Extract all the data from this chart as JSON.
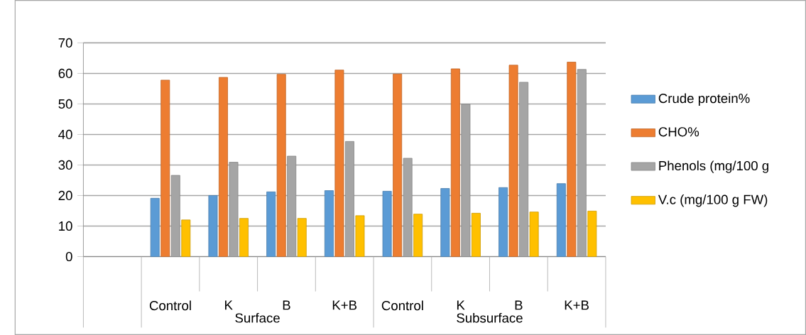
{
  "chart_data": {
    "type": "bar",
    "categories": [
      null,
      "Control",
      "K",
      "B",
      "K+B",
      "Control",
      "K",
      "B",
      "K+B"
    ],
    "series": [
      {
        "name": "Crude protein%",
        "color": "#5b9bd5",
        "values": [
          null,
          19.1,
          20.0,
          21.2,
          21.6,
          21.4,
          22.3,
          22.6,
          23.9
        ]
      },
      {
        "name": "CHO%",
        "color": "#ed7d31",
        "values": [
          null,
          57.8,
          58.7,
          59.7,
          61.1,
          59.8,
          61.5,
          62.7,
          63.7
        ]
      },
      {
        "name": "Phenols (mg/100 g",
        "color": "#a5a5a5",
        "values": [
          null,
          26.6,
          30.9,
          32.9,
          37.7,
          32.2,
          49.9,
          57.1,
          61.3
        ]
      },
      {
        "name": "V.c (mg/100 g FW)",
        "color": "#ffc000",
        "values": [
          null,
          12.0,
          12.5,
          12.5,
          13.4,
          13.9,
          14.2,
          14.6,
          14.9
        ]
      }
    ],
    "ylim": [
      0,
      70
    ],
    "yticks": [
      0,
      10,
      20,
      30,
      40,
      50,
      60,
      70
    ],
    "grid": "y",
    "legend": "right",
    "annotations": [
      "Surface",
      "Subsurface"
    ]
  }
}
